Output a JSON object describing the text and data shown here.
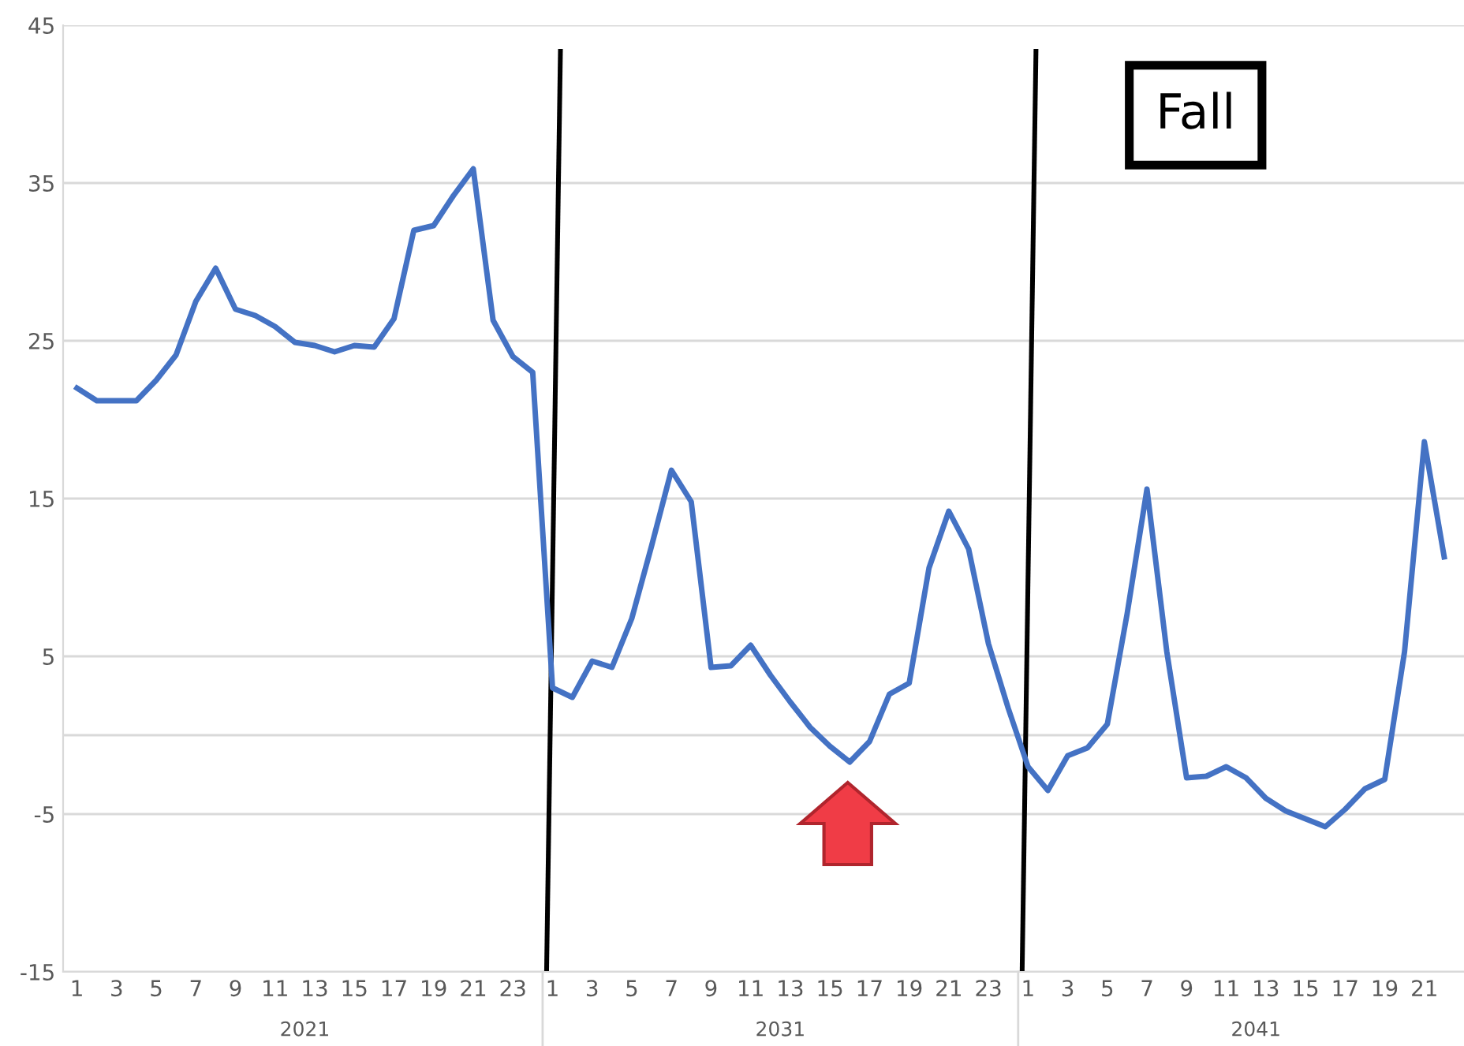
{
  "chart_data": {
    "type": "line",
    "categories": [
      "1",
      null,
      "3",
      null,
      "5",
      null,
      "7",
      null,
      "9",
      null,
      "11",
      null,
      "13",
      null,
      "15",
      null,
      "17",
      null,
      "19",
      null,
      "21",
      null,
      "23",
      null,
      "1",
      null,
      "3",
      null,
      "5",
      null,
      "7",
      null,
      "9",
      null,
      "11",
      null,
      "13",
      null,
      "15",
      null,
      "17",
      null,
      "19",
      null,
      "21",
      null,
      "23",
      null,
      "1",
      null,
      "3",
      null,
      "5",
      null,
      "7",
      null,
      "9",
      null,
      "11",
      null,
      "13",
      null,
      "15",
      null,
      "17",
      null,
      "19",
      null,
      "21",
      null
    ],
    "series": [
      {
        "color": "#4472c4",
        "values": [
          22.0,
          21.2,
          21.2,
          21.2,
          22.5,
          24.1,
          27.5,
          29.6,
          27.0,
          26.6,
          25.9,
          24.9,
          24.7,
          24.3,
          24.7,
          24.6,
          26.4,
          32.0,
          32.3,
          34.2,
          35.9,
          26.3,
          24.0,
          23.0,
          3.0,
          2.4,
          4.7,
          4.3,
          7.4,
          12.0,
          16.8,
          14.8,
          4.3,
          4.4,
          5.7,
          3.8,
          2.1,
          0.5,
          -0.7,
          -1.7,
          -0.4,
          2.6,
          3.3,
          10.6,
          14.2,
          11.8,
          5.8,
          1.7,
          -2.0,
          -3.5,
          -1.3,
          -0.8,
          0.7,
          7.7,
          15.6,
          5.3,
          -2.7,
          -2.6,
          -2.0,
          -2.7,
          -4.0,
          -4.8,
          -5.3,
          -5.8,
          -4.7,
          -3.4,
          -2.8,
          5.3,
          18.6,
          11.3
        ]
      }
    ],
    "ylim": [
      -15,
      45
    ],
    "yticks": [
      -15,
      -5,
      5,
      15,
      25,
      35,
      45
    ],
    "grid": "y",
    "marker": "none",
    "line_style": "solid",
    "ref_lines": [
      {
        "axis": "y",
        "value": 0,
        "color": "#d9d9d9"
      }
    ],
    "annotations": [
      "2021",
      "2031",
      "2041",
      "Fall"
    ]
  }
}
